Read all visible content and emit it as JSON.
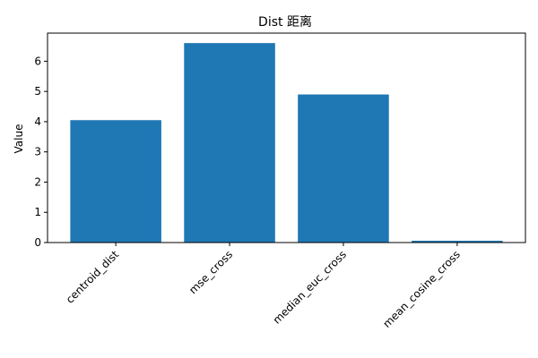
{
  "chart_data": {
    "type": "bar",
    "title": "Dist 距离",
    "xlabel": "",
    "ylabel": "Value",
    "categories": [
      "centroid_dist",
      "mse_cross",
      "median_euc_cross",
      "mean_cosine_cross"
    ],
    "values": [
      4.05,
      6.6,
      4.9,
      0.06
    ],
    "ylim": [
      0,
      6.93
    ],
    "yticks": [
      0,
      1,
      2,
      3,
      4,
      5,
      6
    ],
    "grid": false,
    "legend": "none",
    "bar_color": "#1f77b4"
  }
}
